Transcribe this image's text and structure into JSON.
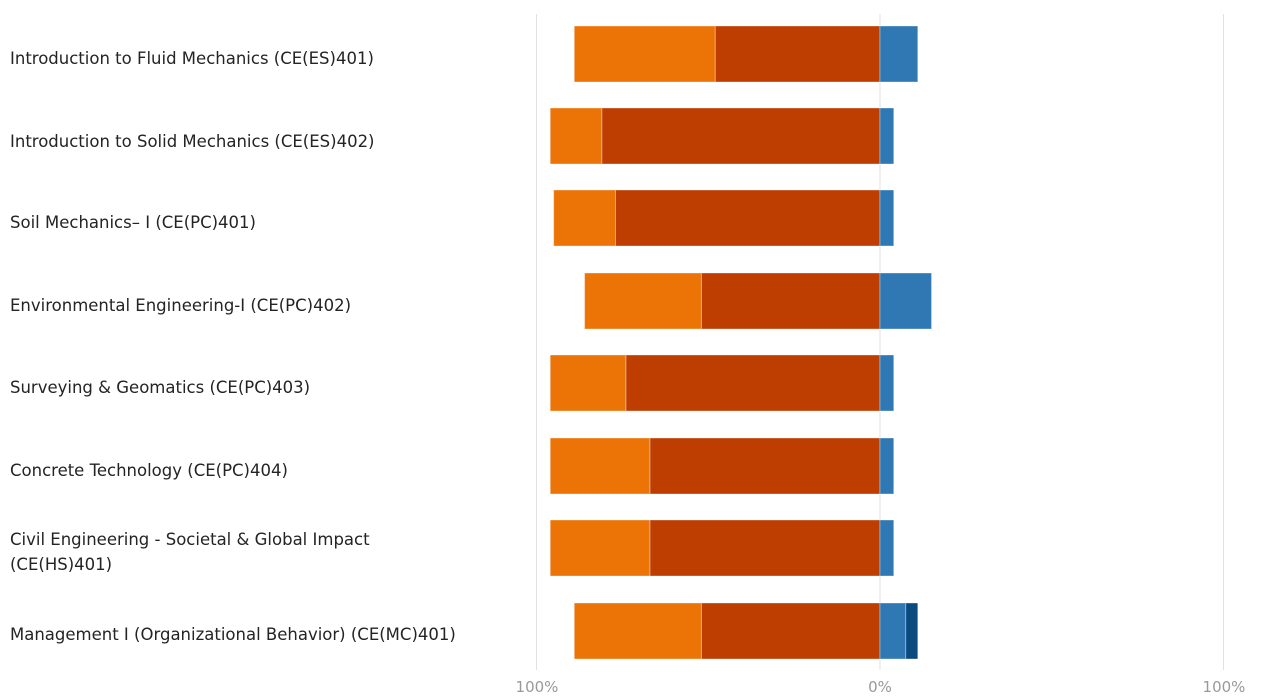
{
  "chart_data": {
    "type": "bar",
    "orientation": "horizontal",
    "stacked": "diverging",
    "categories": [
      "Introduction to Fluid Mechanics (CE(ES)401)",
      "Introduction to Solid Mechanics (CE(ES)402)",
      "Soil Mechanics– I (CE(PC)401)",
      "Environmental Engineering-I (CE(PC)402)",
      "Surveying & Geomatics (CE(PC)403)",
      "Concrete Technology (CE(PC)404)",
      "Civil Engineering - Societal & Global Impact (CE(HS)401)",
      "Management I (Organizational Behavior) (CE(MC)401)"
    ],
    "series": [
      {
        "color": "#BE3D00",
        "direction": "negative",
        "values": [
          48,
          81,
          77,
          52,
          74,
          67,
          67,
          52
        ]
      },
      {
        "color": "#EC7306",
        "direction": "negative",
        "values": [
          41,
          15,
          18,
          34,
          22,
          29,
          29,
          37
        ]
      },
      {
        "color": "#2F78B3",
        "direction": "positive",
        "values": [
          11,
          4,
          4,
          15,
          4,
          4,
          4,
          7.5
        ]
      },
      {
        "color": "#0B4A7F",
        "direction": "positive",
        "values": [
          0,
          0,
          0,
          0,
          0,
          0,
          0,
          3.5
        ]
      }
    ],
    "xlim": [
      -100,
      100
    ],
    "xticks": [
      {
        "value": -100,
        "label": "100%"
      },
      {
        "value": 0,
        "label": "0%"
      },
      {
        "value": 100,
        "label": "100%"
      }
    ],
    "grid": true,
    "legend": "none"
  }
}
